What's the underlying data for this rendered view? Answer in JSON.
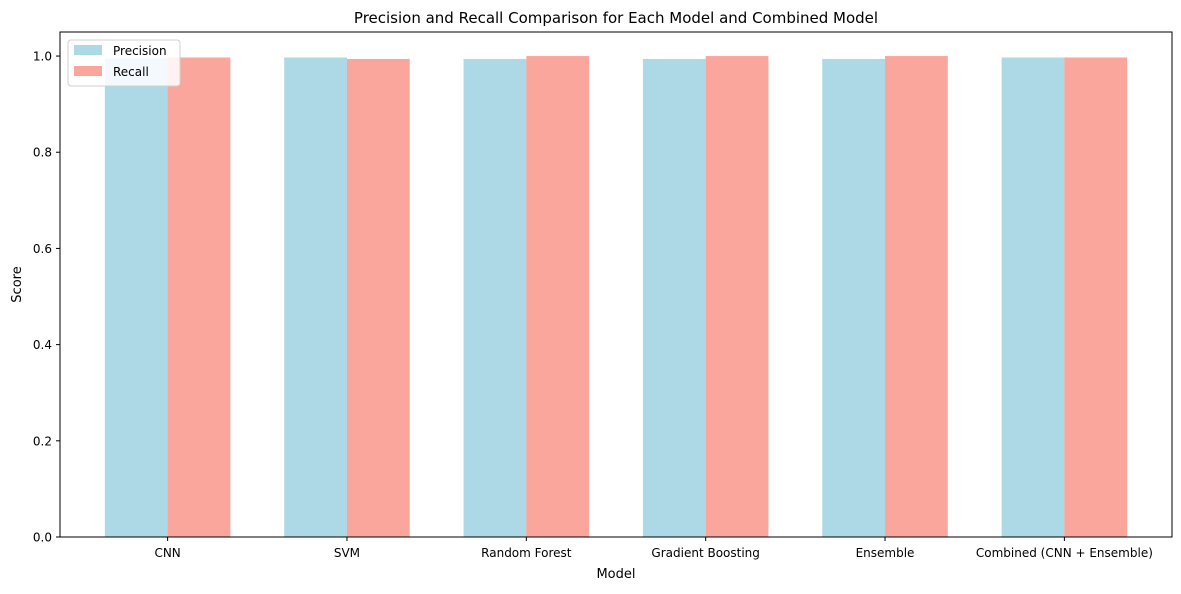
{
  "chart_data": {
    "type": "bar",
    "title": "Precision and Recall Comparison for Each Model and Combined Model",
    "xlabel": "Model",
    "ylabel": "Score",
    "categories": [
      "CNN",
      "SVM",
      "Random Forest",
      "Gradient Boosting",
      "Ensemble",
      "Combined (CNN + Ensemble)"
    ],
    "series": [
      {
        "name": "Precision",
        "color": "#add8e6",
        "values": [
          0.995,
          0.997,
          0.994,
          0.994,
          0.994,
          0.997
        ]
      },
      {
        "name": "Recall",
        "color": "#fa8072",
        "values": [
          0.997,
          0.994,
          1.0,
          1.0,
          1.0,
          0.997
        ]
      }
    ],
    "ylim": [
      0,
      1.05
    ],
    "yticks": [
      "0.0",
      "0.2",
      "0.4",
      "0.6",
      "0.8",
      "1.0"
    ],
    "legend": "top-left",
    "grid": false
  }
}
